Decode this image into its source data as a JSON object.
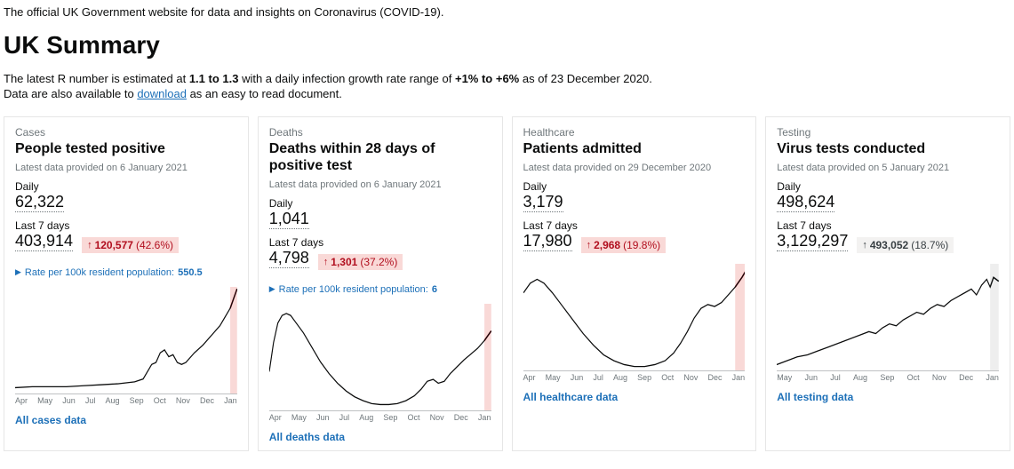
{
  "intro": "The official UK Government website for data and insights on Coronavirus (COVID-19).",
  "heading": "UK Summary",
  "r_line": {
    "prefix": "The latest R number is estimated at ",
    "r_range": "1.1 to 1.3",
    "mid": " with a daily infection growth rate range of ",
    "growth": "+1% to +6%",
    "suffix": " as of 23 December 2020."
  },
  "download_line": {
    "prefix": "Data are also available to ",
    "link": "download",
    "suffix": " as an easy to read document."
  },
  "labels": {
    "daily": "Daily",
    "last7": "Last 7 days",
    "rate_prefix": "Rate per 100k resident population: "
  },
  "months": [
    "Apr",
    "May",
    "Jun",
    "Jul",
    "Aug",
    "Sep",
    "Oct",
    "Nov",
    "Dec",
    "Jan"
  ],
  "months_testing": [
    "May",
    "Jun",
    "Jul",
    "Aug",
    "Sep",
    "Oct",
    "Nov",
    "Dec",
    "Jan"
  ],
  "cards": [
    {
      "category": "Cases",
      "title": "People tested positive",
      "provided": "Latest data provided on 6 January 2021",
      "daily": "62,322",
      "last7": "403,914",
      "badge": {
        "style": "red",
        "arrow": "↑",
        "delta": "120,577",
        "pct": "(42.6%)"
      },
      "rate": "550.5",
      "all_link": "All cases data",
      "chart": {
        "type": "line",
        "stroke": "#0b0c0c",
        "stroke_width": 1.2,
        "recent_stroke": "#b10e1e",
        "recent_fill": "#f9d9d7",
        "xlim": [
          0,
          260
        ],
        "ylim": [
          0,
          110
        ],
        "recent_x0": 250,
        "points": [
          [
            0,
            104
          ],
          [
            20,
            103
          ],
          [
            40,
            103
          ],
          [
            60,
            103
          ],
          [
            80,
            102
          ],
          [
            100,
            101
          ],
          [
            120,
            100
          ],
          [
            140,
            98
          ],
          [
            150,
            95
          ],
          [
            160,
            80
          ],
          [
            165,
            78
          ],
          [
            170,
            68
          ],
          [
            175,
            65
          ],
          [
            180,
            72
          ],
          [
            185,
            70
          ],
          [
            190,
            78
          ],
          [
            195,
            80
          ],
          [
            200,
            78
          ],
          [
            210,
            68
          ],
          [
            220,
            60
          ],
          [
            230,
            50
          ],
          [
            240,
            40
          ],
          [
            248,
            28
          ],
          [
            252,
            22
          ],
          [
            256,
            12
          ],
          [
            260,
            2
          ]
        ]
      }
    },
    {
      "category": "Deaths",
      "title": "Deaths within 28 days of positive test",
      "provided": "Latest data provided on 6 January 2021",
      "daily": "1,041",
      "last7": "4,798",
      "badge": {
        "style": "red",
        "arrow": "↑",
        "delta": "1,301",
        "pct": "(37.2%)"
      },
      "rate": "6",
      "all_link": "All deaths data",
      "chart": {
        "type": "line",
        "stroke": "#0b0c0c",
        "stroke_width": 1.2,
        "recent_stroke": "#b10e1e",
        "recent_fill": "#f9d9d7",
        "xlim": [
          0,
          260
        ],
        "ylim": [
          0,
          110
        ],
        "recent_x0": 250,
        "points": [
          [
            0,
            70
          ],
          [
            5,
            40
          ],
          [
            10,
            20
          ],
          [
            15,
            12
          ],
          [
            20,
            10
          ],
          [
            25,
            12
          ],
          [
            30,
            18
          ],
          [
            40,
            30
          ],
          [
            50,
            45
          ],
          [
            60,
            60
          ],
          [
            70,
            72
          ],
          [
            80,
            82
          ],
          [
            90,
            90
          ],
          [
            100,
            96
          ],
          [
            110,
            100
          ],
          [
            120,
            103
          ],
          [
            130,
            104
          ],
          [
            140,
            104
          ],
          [
            150,
            103
          ],
          [
            160,
            100
          ],
          [
            170,
            95
          ],
          [
            178,
            88
          ],
          [
            185,
            80
          ],
          [
            192,
            78
          ],
          [
            198,
            82
          ],
          [
            205,
            80
          ],
          [
            212,
            72
          ],
          [
            220,
            65
          ],
          [
            228,
            58
          ],
          [
            236,
            52
          ],
          [
            244,
            46
          ],
          [
            252,
            38
          ],
          [
            260,
            28
          ]
        ]
      }
    },
    {
      "category": "Healthcare",
      "title": "Patients admitted",
      "provided": "Latest data provided on 29 December 2020",
      "daily": "3,179",
      "last7": "17,980",
      "badge": {
        "style": "red",
        "arrow": "↑",
        "delta": "2,968",
        "pct": "(19.8%)"
      },
      "rate": null,
      "all_link": "All healthcare data",
      "chart": {
        "type": "line",
        "stroke": "#0b0c0c",
        "stroke_width": 1.2,
        "recent_stroke": "#b10e1e",
        "recent_fill": "#f9d9d7",
        "xlim": [
          0,
          260
        ],
        "ylim": [
          0,
          110
        ],
        "recent_x0": 248,
        "points": [
          [
            0,
            30
          ],
          [
            8,
            20
          ],
          [
            16,
            16
          ],
          [
            24,
            20
          ],
          [
            34,
            30
          ],
          [
            46,
            44
          ],
          [
            58,
            58
          ],
          [
            70,
            72
          ],
          [
            82,
            84
          ],
          [
            94,
            94
          ],
          [
            106,
            100
          ],
          [
            118,
            104
          ],
          [
            130,
            106
          ],
          [
            142,
            106
          ],
          [
            154,
            104
          ],
          [
            166,
            100
          ],
          [
            176,
            92
          ],
          [
            184,
            82
          ],
          [
            192,
            70
          ],
          [
            200,
            56
          ],
          [
            208,
            46
          ],
          [
            216,
            42
          ],
          [
            224,
            44
          ],
          [
            232,
            40
          ],
          [
            240,
            32
          ],
          [
            248,
            24
          ],
          [
            256,
            14
          ],
          [
            260,
            8
          ]
        ]
      }
    },
    {
      "category": "Testing",
      "title": "Virus tests conducted",
      "provided": "Latest data provided on 5 January 2021",
      "daily": "498,624",
      "last7": "3,129,297",
      "badge": {
        "style": "grey",
        "arrow": "↑",
        "delta": "493,052",
        "pct": "(18.7%)"
      },
      "rate": null,
      "all_link": "All testing data",
      "chart": {
        "type": "line",
        "stroke": "#0b0c0c",
        "stroke_width": 1.2,
        "recent_stroke": "#6f777b",
        "recent_fill": "#eeeeee",
        "xlim": [
          0,
          260
        ],
        "ylim": [
          0,
          110
        ],
        "recent_x0": 248,
        "points": [
          [
            0,
            104
          ],
          [
            12,
            100
          ],
          [
            24,
            96
          ],
          [
            36,
            94
          ],
          [
            48,
            90
          ],
          [
            60,
            86
          ],
          [
            72,
            82
          ],
          [
            84,
            78
          ],
          [
            96,
            74
          ],
          [
            108,
            70
          ],
          [
            116,
            72
          ],
          [
            124,
            66
          ],
          [
            132,
            62
          ],
          [
            140,
            64
          ],
          [
            148,
            58
          ],
          [
            156,
            54
          ],
          [
            164,
            50
          ],
          [
            172,
            52
          ],
          [
            180,
            46
          ],
          [
            188,
            42
          ],
          [
            196,
            44
          ],
          [
            204,
            38
          ],
          [
            212,
            34
          ],
          [
            220,
            30
          ],
          [
            228,
            26
          ],
          [
            234,
            32
          ],
          [
            240,
            22
          ],
          [
            246,
            16
          ],
          [
            250,
            24
          ],
          [
            254,
            14
          ],
          [
            260,
            18
          ]
        ]
      }
    }
  ]
}
